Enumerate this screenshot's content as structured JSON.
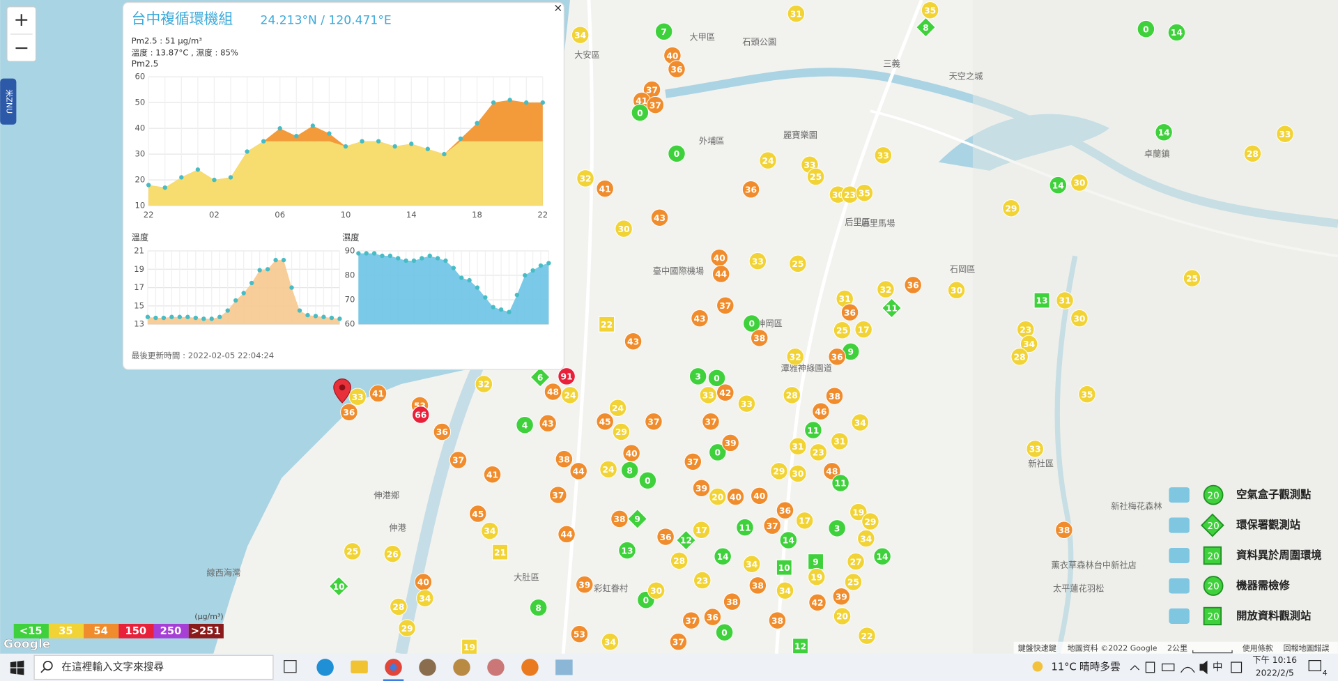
{
  "popup": {
    "title": "台中複循環機組",
    "coords": "24.213°N / 120.471°E",
    "pm_text": "Pm2.5 : 51 μg/m³",
    "env_text": "溫度 : 13.87°C , 濕度 : 85%",
    "close": "×",
    "updated": "最後更新時間 : 2022-02-05 22:04:24"
  },
  "pm_chart": {
    "type": "area",
    "title": "Pm2.5",
    "categories": [
      "22",
      null,
      null,
      null,
      "02",
      null,
      null,
      null,
      "06",
      null,
      null,
      null,
      "10",
      null,
      null,
      null,
      "14",
      null,
      null,
      null,
      "18",
      null,
      null,
      null,
      "22"
    ],
    "values": [
      18,
      17,
      21,
      24,
      20,
      21,
      31,
      35,
      40,
      37,
      41,
      38,
      33,
      35,
      35,
      33,
      34,
      32,
      30,
      36,
      42,
      50,
      51,
      50,
      50
    ],
    "ylim": [
      10,
      60
    ],
    "yticks": [
      10,
      20,
      30,
      40,
      50,
      60
    ],
    "grid": true,
    "color": "#f7dc6f",
    "over_color": "#f39a3a",
    "point_color": "#47bcc4"
  },
  "temp_chart": {
    "type": "area",
    "title": "溫度",
    "values": [
      13.8,
      13.7,
      13.7,
      13.8,
      13.8,
      13.8,
      13.7,
      13.6,
      13.6,
      13.8,
      14.5,
      15.6,
      16.4,
      17.5,
      18.9,
      19.0,
      20.0,
      20.0,
      17.0,
      14.5,
      14.0,
      13.9,
      13.8,
      13.7,
      13.6
    ],
    "ylim": [
      13,
      21
    ],
    "yticks": [
      13,
      15,
      17,
      19,
      21
    ],
    "grid": true,
    "color": "#f6c88e",
    "point_color": "#47bcc4"
  },
  "hum_chart": {
    "type": "area",
    "title": "濕度",
    "values": [
      89,
      89,
      89,
      88,
      88,
      87,
      86,
      86,
      87,
      88,
      87,
      86,
      83,
      79,
      78,
      75,
      71,
      67,
      66,
      65,
      72,
      80,
      82,
      84,
      85
    ],
    "ylim": [
      60,
      90
    ],
    "yticks": [
      60,
      70,
      80,
      90
    ],
    "grid": true,
    "color": "#6cc3e6",
    "point_color": "#47bcc4"
  },
  "color_scale": {
    "unit": "(μg/m³)",
    "items": [
      {
        "value": 15,
        "label": "<15",
        "color": "#3fd13b"
      },
      {
        "value": 35,
        "label": "35",
        "color": "#f2d335"
      },
      {
        "value": 54,
        "label": "54",
        "color": "#f08c2c"
      },
      {
        "value": 150,
        "label": "150",
        "color": "#e8203a"
      },
      {
        "value": 250,
        "label": "250",
        "color": "#a73fd6"
      },
      {
        "value": 251,
        "label": ">251",
        "color": "#8b1a1a"
      }
    ]
  },
  "legend": {
    "sample": "20",
    "items": [
      "空氣盒子觀測點",
      "環保署觀測站",
      "資料異於周圍環境",
      "機器需檢修",
      "開放資料觀測站"
    ]
  },
  "markers": [
    {
      "value": 31
    },
    {
      "value": 35
    },
    {
      "value": 8,
      "shape": "diamond"
    },
    {
      "value": 34
    },
    {
      "value": 7
    },
    {
      "value": 40
    },
    {
      "value": 36
    },
    {
      "value": 37
    },
    {
      "value": 41
    },
    {
      "value": 37
    },
    {
      "value": 0
    },
    {
      "value": 0
    },
    {
      "value": 14
    },
    {
      "value": 14
    },
    {
      "value": 33
    },
    {
      "value": 28
    },
    {
      "value": 33
    },
    {
      "value": 0
    },
    {
      "value": 24
    },
    {
      "value": 33
    },
    {
      "value": 25
    },
    {
      "value": 14
    },
    {
      "value": 30
    },
    {
      "value": 32
    },
    {
      "value": 41
    },
    {
      "value": 36
    },
    {
      "value": 30
    },
    {
      "value": 23
    },
    {
      "value": 35
    },
    {
      "value": 29
    },
    {
      "value": 43
    },
    {
      "value": 30
    },
    {
      "value": 25
    },
    {
      "value": 33
    },
    {
      "value": 40
    },
    {
      "value": 44
    },
    {
      "value": 36
    },
    {
      "value": 32
    },
    {
      "value": 30
    },
    {
      "value": 25
    },
    {
      "value": 31
    },
    {
      "value": 13,
      "shape": "square"
    },
    {
      "value": 31
    },
    {
      "value": 11,
      "shape": "diamond"
    },
    {
      "value": 36
    },
    {
      "value": 37
    },
    {
      "value": 43
    },
    {
      "value": 0
    },
    {
      "value": 30
    },
    {
      "value": 23
    },
    {
      "value": 17
    },
    {
      "value": 25
    },
    {
      "value": 34
    },
    {
      "value": 38
    },
    {
      "value": 22,
      "shape": "square"
    },
    {
      "value": 43
    },
    {
      "value": 28
    },
    {
      "value": 9
    },
    {
      "value": 36
    },
    {
      "value": 32
    },
    {
      "value": 6,
      "shape": "diamond"
    },
    {
      "value": 91
    },
    {
      "value": 48
    },
    {
      "value": 24
    },
    {
      "value": 32
    },
    {
      "value": 41
    },
    {
      "value": 33
    },
    {
      "value": 36
    },
    {
      "value": 53
    },
    {
      "value": 66
    },
    {
      "value": 3
    },
    {
      "value": 0
    },
    {
      "value": 33
    },
    {
      "value": 42
    },
    {
      "value": 33
    },
    {
      "value": 28
    },
    {
      "value": 38
    },
    {
      "value": 46
    },
    {
      "value": 34
    },
    {
      "value": 35
    },
    {
      "value": 24
    },
    {
      "value": 45
    },
    {
      "value": 29
    },
    {
      "value": 37
    },
    {
      "value": 37
    },
    {
      "value": 31
    },
    {
      "value": 11
    },
    {
      "value": 31
    },
    {
      "value": 23
    },
    {
      "value": 36
    },
    {
      "value": 37
    },
    {
      "value": 41
    },
    {
      "value": 4
    },
    {
      "value": 43
    },
    {
      "value": 38
    },
    {
      "value": 44
    },
    {
      "value": 24
    },
    {
      "value": 40
    },
    {
      "value": 8
    },
    {
      "value": 0
    },
    {
      "value": 37
    },
    {
      "value": 0
    },
    {
      "value": 39
    },
    {
      "value": 48
    },
    {
      "value": 11
    },
    {
      "value": 30
    },
    {
      "value": 29
    },
    {
      "value": 33
    },
    {
      "value": 38
    },
    {
      "value": 37
    },
    {
      "value": 45
    },
    {
      "value": 34
    },
    {
      "value": 21,
      "shape": "square"
    },
    {
      "value": 44
    },
    {
      "value": 38
    },
    {
      "value": 9,
      "shape": "diamond"
    },
    {
      "value": 13
    },
    {
      "value": 36
    },
    {
      "value": 12,
      "shape": "diamond"
    },
    {
      "value": 17
    },
    {
      "value": 40
    },
    {
      "value": 40
    },
    {
      "value": 36
    },
    {
      "value": 37
    },
    {
      "value": 17
    },
    {
      "value": 3
    },
    {
      "value": 19
    },
    {
      "value": 29
    },
    {
      "value": 34
    },
    {
      "value": 11
    },
    {
      "value": 14
    },
    {
      "value": 9,
      "shape": "square"
    },
    {
      "value": 10,
      "shape": "square"
    },
    {
      "value": 27
    },
    {
      "value": 14
    },
    {
      "value": 25
    },
    {
      "value": 26
    },
    {
      "value": 10,
      "shape": "diamond"
    },
    {
      "value": 40
    },
    {
      "value": 34
    },
    {
      "value": 28
    },
    {
      "value": 29
    },
    {
      "value": 8
    },
    {
      "value": 39
    },
    {
      "value": 0
    },
    {
      "value": 30
    },
    {
      "value": 0
    },
    {
      "value": 38
    },
    {
      "value": 38
    },
    {
      "value": 34
    },
    {
      "value": 19
    },
    {
      "value": 39
    },
    {
      "value": 42
    },
    {
      "value": 20
    },
    {
      "value": 22
    },
    {
      "value": 53
    },
    {
      "value": 34
    },
    {
      "value": 19,
      "shape": "square"
    },
    {
      "value": 37
    },
    {
      "value": 37
    },
    {
      "value": 36
    },
    {
      "value": 12,
      "shape": "square"
    },
    {
      "value": 14
    },
    {
      "value": 23
    },
    {
      "value": 28
    },
    {
      "value": 25
    },
    {
      "value": 39
    },
    {
      "value": 20
    },
    {
      "value": 34
    },
    {
      "value": 38
    }
  ],
  "map_labels": [
    "大甲區",
    "大安區",
    "外埔區",
    "后里區",
    "石岡區",
    "卓蘭鎮",
    "神岡區",
    "新社區",
    "大肚區",
    "伸港鄉",
    "伸港",
    "天空之城",
    "麗寶樂園",
    "石頭公園",
    "臺中國際機場",
    "后里馬場",
    "薰衣草森林台中新社店",
    "太平蓮花羽松",
    "彩虹眷村",
    "三義",
    "線西海灣",
    "潭雅神綠園道",
    "新社梅花森林"
  ],
  "map_ui": {
    "zoom_in": "+",
    "zoom_out": "−",
    "tab": "米ZNU",
    "google": "Google",
    "shortcuts": "鍵盤快速鍵",
    "mapdata": "地圖資料 ©2022 Google",
    "scale": "2公里",
    "terms": "使用條款",
    "report": "回報地圖錯誤"
  },
  "taskbar": {
    "search": "在這裡輸入文字來搜尋",
    "temp": "11°C",
    "weather": "晴時多雲",
    "ime": "中",
    "time": "下午 10:16",
    "date": "2022/2/5",
    "notify": "4"
  }
}
